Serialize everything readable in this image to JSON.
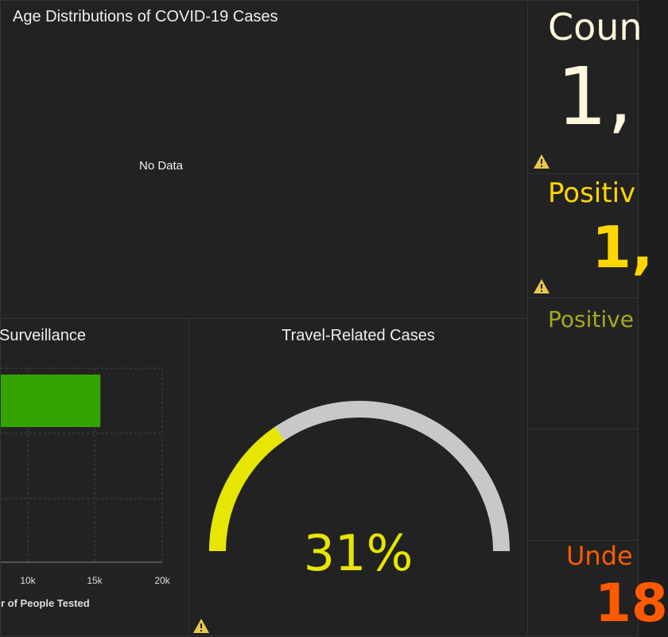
{
  "age_panel": {
    "title": "Age Distributions of COVID-19 Cases",
    "no_data": "No Data"
  },
  "surveillance": {
    "title": "Surveillance",
    "x_ticks": [
      "10k",
      "15k",
      "20k"
    ],
    "x_label": "r of People Tested",
    "bar_value": 15400,
    "bar_color": "#33a300"
  },
  "travel": {
    "title": "Travel-Related Cases",
    "percent_label": "31%",
    "percent": 31,
    "fill_color": "#e6e600",
    "track_color": "#c8c8c8"
  },
  "indicators": [
    {
      "title": "Coun",
      "value": "1,",
      "color": "#fff8dc"
    },
    {
      "title": "Positiv",
      "value": "1,",
      "color": "#ffd700"
    },
    {
      "title": "Positive",
      "value": "",
      "color": "#a6a820"
    },
    {
      "title": "",
      "value": "",
      "color": "#ffffff"
    },
    {
      "title": "Unde",
      "value": "18",
      "color": "#ff5a00"
    }
  ]
}
